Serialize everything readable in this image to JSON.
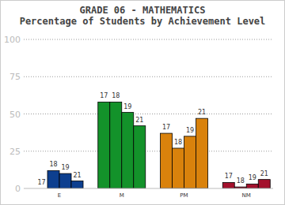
{
  "chart_data": {
    "type": "bar",
    "title": "GRADE 06 - MATHEMATICS",
    "subtitle": "Percentage of Students by Achievement Level",
    "categories": [
      "E",
      "M",
      "PM",
      "NM"
    ],
    "colors": [
      "#0d3f8f",
      "#13922a",
      "#d9820c",
      "#a3112d"
    ],
    "series": [
      {
        "name": "17",
        "values": [
          0,
          58,
          37,
          4
        ]
      },
      {
        "name": "18",
        "values": [
          12,
          58,
          27,
          1
        ]
      },
      {
        "name": "19",
        "values": [
          10,
          51,
          35,
          3
        ]
      },
      {
        "name": "21",
        "values": [
          5,
          42,
          47,
          6
        ]
      }
    ],
    "ylim": [
      0,
      100
    ],
    "yticks": [
      0,
      25,
      50,
      75,
      100
    ],
    "grid": true
  }
}
